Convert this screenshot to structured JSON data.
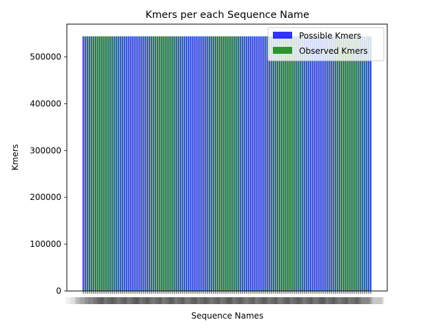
{
  "chart_data": {
    "type": "bar",
    "title": "Kmers per each Sequence Name",
    "xlabel": "Sequence Names",
    "ylabel": "Kmers",
    "ylim": [
      0,
      570000
    ],
    "yticks": [
      0,
      100000,
      200000,
      300000,
      400000,
      500000
    ],
    "legend_position": "top-right",
    "category_count": 140,
    "series": [
      {
        "name": "Possible Kmers",
        "color": "#0000ff",
        "alpha": 0.8,
        "value": 544000
      },
      {
        "name": "Observed Kmers",
        "color": "#008000",
        "alpha": 0.8,
        "value": 544000
      }
    ]
  }
}
